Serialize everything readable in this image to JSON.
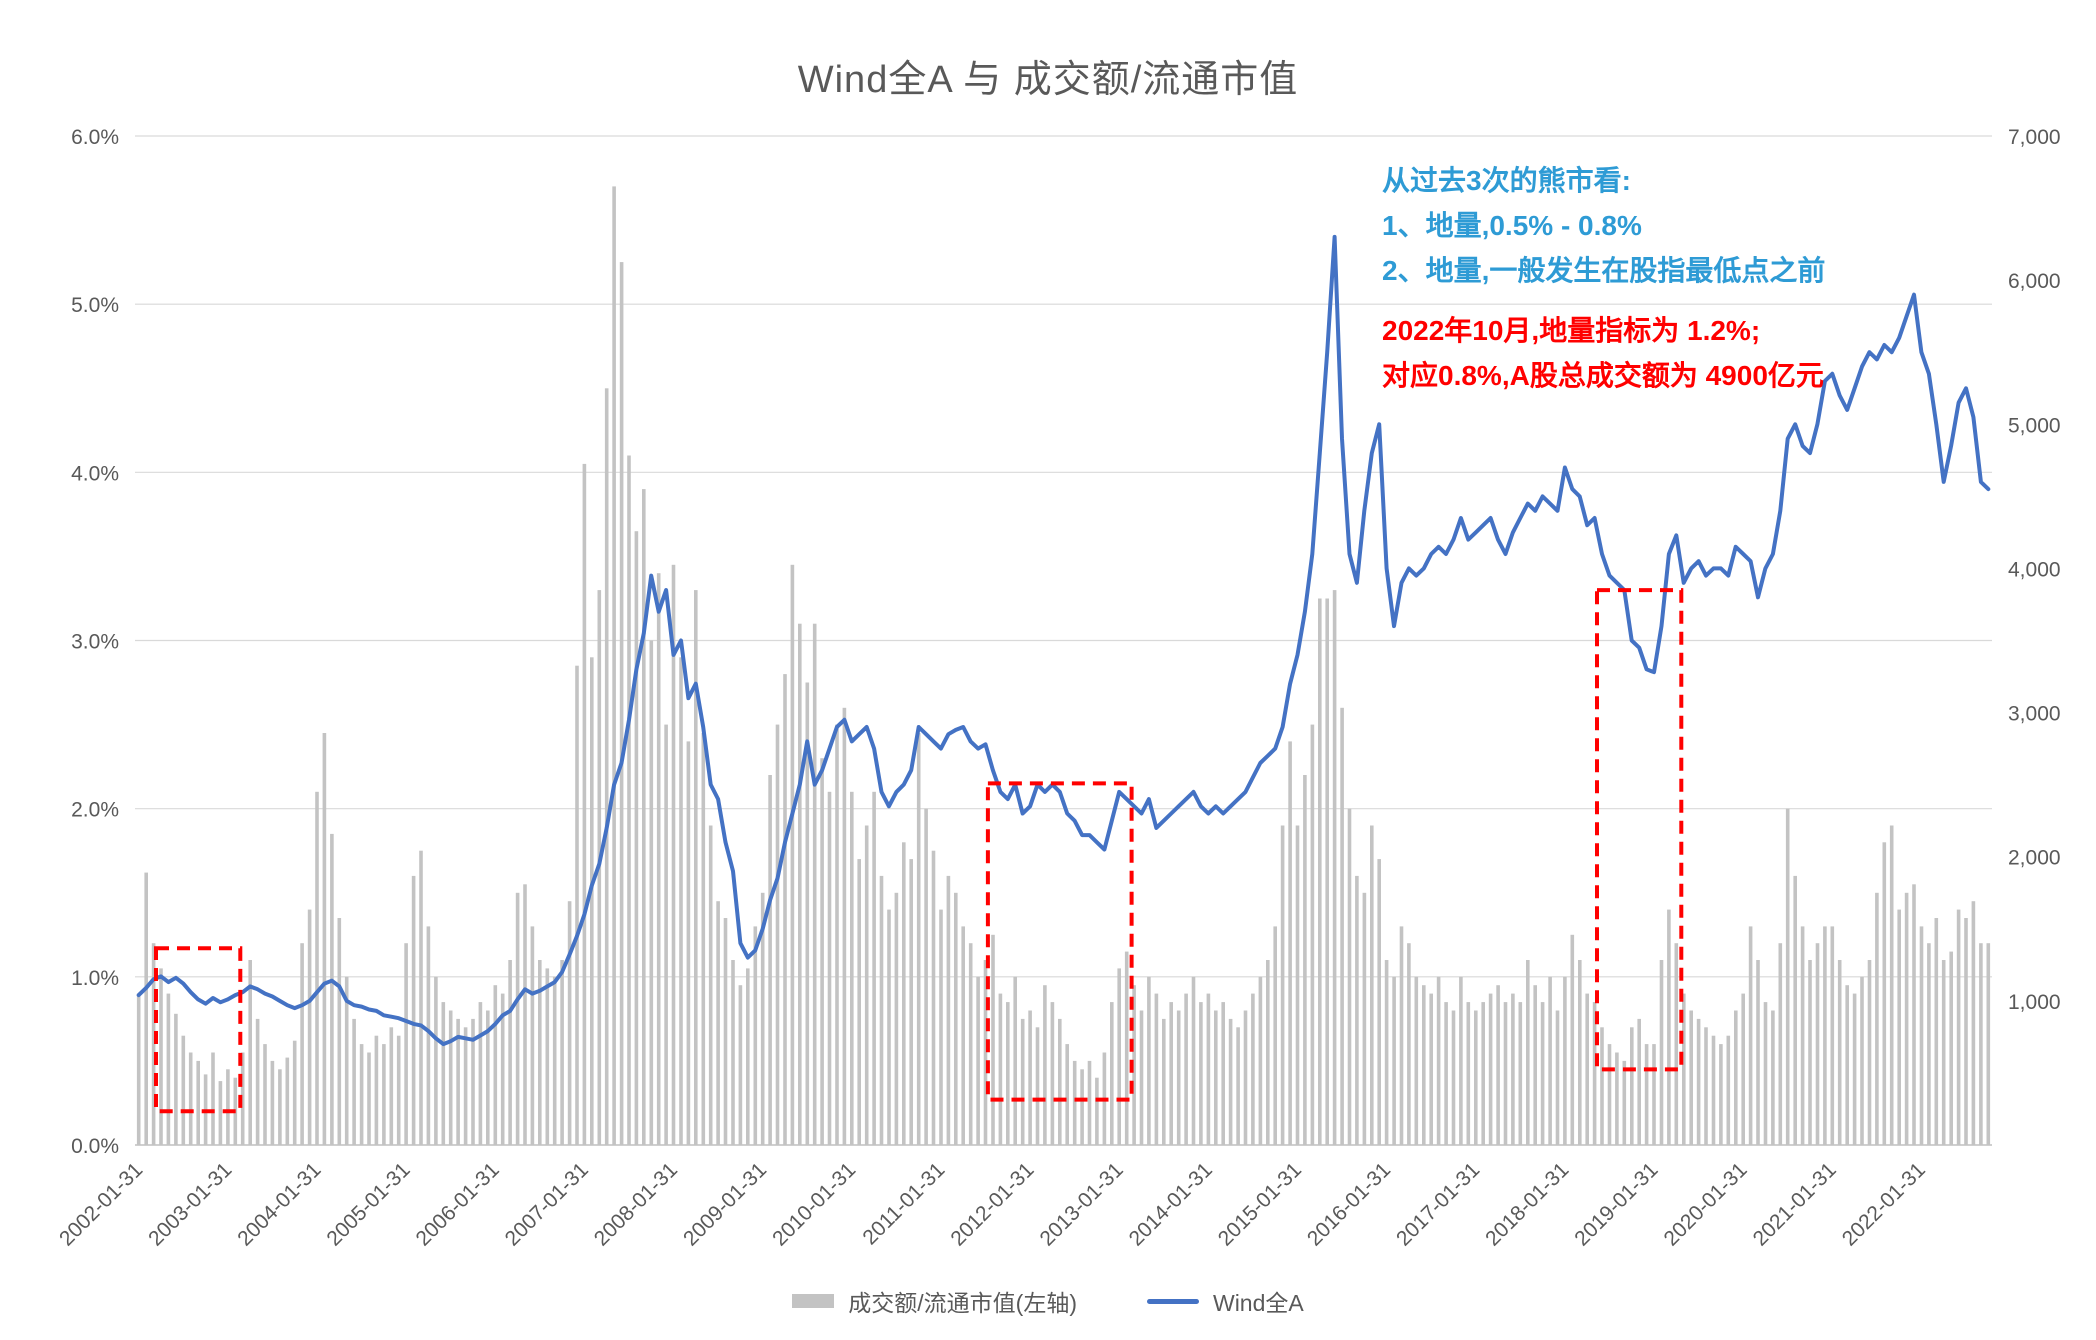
{
  "title": "Wind全A 与 成交额/流通市值",
  "annotations": {
    "blue_color": "#2E9BD5",
    "red_color": "#FF0000",
    "blue_lines": [
      "从过去3次的熊市看:",
      "1、地量,0.5% - 0.8%",
      "2、地量,一般发生在股指最低点之前"
    ],
    "red_lines": [
      "2022年10月,地量指标为 1.2%;",
      "对应0.8%,A股总成交额为 4900亿元"
    ]
  },
  "legend": [
    {
      "label": "成交额/流通市值(左轴)",
      "type": "bar",
      "color": "#C3C3C3"
    },
    {
      "label": "Wind全A",
      "type": "line",
      "color": "#4472C4"
    }
  ],
  "chart_data": {
    "type": "combo bar+line",
    "title": "Wind全A 与 成交额/流通市值",
    "x_frequency": "monthly",
    "x_start_month": "2002-01",
    "x_end_month": "2022-10",
    "x_tick_labels": [
      "2002-01-31",
      "2003-01-31",
      "2004-01-31",
      "2005-01-31",
      "2006-01-31",
      "2007-01-31",
      "2008-01-31",
      "2009-01-31",
      "2010-01-31",
      "2011-01-31",
      "2012-01-31",
      "2013-01-31",
      "2014-01-31",
      "2015-01-31",
      "2016-01-31",
      "2017-01-31",
      "2018-01-31",
      "2019-01-31",
      "2020-01-31",
      "2021-01-31",
      "2022-01-31"
    ],
    "left_axis": {
      "unit": "%",
      "min": 0,
      "max": 6,
      "step": 1,
      "ticks": [
        "0.0%",
        "1.0%",
        "2.0%",
        "3.0%",
        "4.0%",
        "5.0%",
        "6.0%"
      ]
    },
    "right_axis": {
      "min": 0,
      "max": 7000,
      "step": 1000,
      "ticks": [
        "1,000",
        "2,000",
        "3,000",
        "4,000",
        "5,000",
        "6,000",
        "7,000"
      ]
    },
    "grid": "horizontal",
    "legend_position": "bottom",
    "series": [
      {
        "name": "成交额/流通市值(左轴)",
        "type": "bar",
        "axis": "left",
        "unit": "%",
        "color": "#C3C3C3",
        "values": [
          0.9,
          1.62,
          1.2,
          1.05,
          0.9,
          0.78,
          0.65,
          0.55,
          0.5,
          0.42,
          0.55,
          0.38,
          0.45,
          0.4,
          0.55,
          1.1,
          0.75,
          0.6,
          0.5,
          0.45,
          0.52,
          0.62,
          1.2,
          1.4,
          2.1,
          2.45,
          1.85,
          1.35,
          1.0,
          0.75,
          0.6,
          0.55,
          0.65,
          0.6,
          0.7,
          0.65,
          1.2,
          1.6,
          1.75,
          1.3,
          1.0,
          0.85,
          0.8,
          0.75,
          0.7,
          0.75,
          0.85,
          0.8,
          0.95,
          0.9,
          1.1,
          1.5,
          1.55,
          1.3,
          1.1,
          1.05,
          1.0,
          1.1,
          1.45,
          2.85,
          4.05,
          2.9,
          3.3,
          4.5,
          5.7,
          5.25,
          4.1,
          3.65,
          3.9,
          3.0,
          3.4,
          2.5,
          3.45,
          2.9,
          2.4,
          3.3,
          2.45,
          1.9,
          1.45,
          1.35,
          1.1,
          0.95,
          1.05,
          1.3,
          1.5,
          2.2,
          2.5,
          2.8,
          3.45,
          3.1,
          2.75,
          3.1,
          2.3,
          2.1,
          2.5,
          2.6,
          2.1,
          1.7,
          1.9,
          2.1,
          1.6,
          1.4,
          1.5,
          1.8,
          1.7,
          2.45,
          2.0,
          1.75,
          1.4,
          1.6,
          1.5,
          1.3,
          1.2,
          1.0,
          1.1,
          1.25,
          0.9,
          0.85,
          1.0,
          0.75,
          0.8,
          0.7,
          0.95,
          0.85,
          0.75,
          0.6,
          0.5,
          0.45,
          0.5,
          0.4,
          0.55,
          0.85,
          1.05,
          1.15,
          0.95,
          0.8,
          1.0,
          0.9,
          0.75,
          0.85,
          0.8,
          0.9,
          1.0,
          0.85,
          0.9,
          0.8,
          0.85,
          0.75,
          0.7,
          0.8,
          0.9,
          1.0,
          1.1,
          1.3,
          1.9,
          2.4,
          1.9,
          2.2,
          2.5,
          3.25,
          3.25,
          3.3,
          2.6,
          2.0,
          1.6,
          1.5,
          1.9,
          1.7,
          1.1,
          1.0,
          1.3,
          1.2,
          1.0,
          0.95,
          0.9,
          1.0,
          0.85,
          0.8,
          1.0,
          0.85,
          0.8,
          0.85,
          0.9,
          0.95,
          0.85,
          0.9,
          0.85,
          1.1,
          0.95,
          0.85,
          1.0,
          0.8,
          1.0,
          1.25,
          1.1,
          0.9,
          0.85,
          0.7,
          0.6,
          0.55,
          0.5,
          0.7,
          0.75,
          0.6,
          0.6,
          1.1,
          1.4,
          1.2,
          0.9,
          0.8,
          0.75,
          0.7,
          0.65,
          0.6,
          0.65,
          0.8,
          0.9,
          1.3,
          1.1,
          0.85,
          0.8,
          1.2,
          2.0,
          1.6,
          1.3,
          1.1,
          1.2,
          1.3,
          1.3,
          1.1,
          0.95,
          0.9,
          1.0,
          1.1,
          1.5,
          1.8,
          1.9,
          1.4,
          1.5,
          1.55,
          1.3,
          1.2,
          1.35,
          1.1,
          1.15,
          1.4,
          1.35,
          1.45,
          1.2,
          1.2
        ]
      },
      {
        "name": "Wind全A",
        "type": "line",
        "axis": "right",
        "color": "#4472C4",
        "values": [
          1040,
          1090,
          1150,
          1170,
          1130,
          1160,
          1120,
          1060,
          1010,
          980,
          1020,
          990,
          1010,
          1040,
          1060,
          1100,
          1080,
          1050,
          1030,
          1000,
          970,
          950,
          970,
          1000,
          1060,
          1120,
          1140,
          1100,
          1000,
          970,
          960,
          940,
          930,
          900,
          890,
          880,
          860,
          840,
          830,
          790,
          740,
          700,
          720,
          750,
          740,
          730,
          760,
          790,
          840,
          900,
          930,
          1010,
          1080,
          1050,
          1070,
          1100,
          1130,
          1200,
          1320,
          1450,
          1600,
          1800,
          1950,
          2200,
          2500,
          2650,
          2950,
          3300,
          3550,
          3950,
          3700,
          3850,
          3400,
          3500,
          3100,
          3200,
          2900,
          2500,
          2400,
          2100,
          1900,
          1400,
          1300,
          1350,
          1500,
          1700,
          1850,
          2100,
          2300,
          2500,
          2800,
          2500,
          2600,
          2750,
          2900,
          2950,
          2800,
          2850,
          2900,
          2750,
          2450,
          2350,
          2450,
          2500,
          2600,
          2900,
          2850,
          2800,
          2750,
          2850,
          2880,
          2900,
          2800,
          2750,
          2780,
          2600,
          2450,
          2400,
          2500,
          2300,
          2350,
          2500,
          2450,
          2500,
          2450,
          2300,
          2250,
          2150,
          2150,
          2100,
          2050,
          2250,
          2450,
          2400,
          2350,
          2300,
          2400,
          2200,
          2250,
          2300,
          2350,
          2400,
          2450,
          2350,
          2300,
          2350,
          2300,
          2350,
          2400,
          2450,
          2550,
          2650,
          2700,
          2750,
          2900,
          3200,
          3400,
          3700,
          4100,
          4800,
          5500,
          6300,
          4900,
          4100,
          3900,
          4400,
          4800,
          5000,
          4000,
          3600,
          3900,
          4000,
          3950,
          4000,
          4100,
          4150,
          4100,
          4200,
          4350,
          4200,
          4250,
          4300,
          4350,
          4200,
          4100,
          4250,
          4350,
          4450,
          4400,
          4500,
          4450,
          4400,
          4700,
          4550,
          4500,
          4300,
          4350,
          4100,
          3950,
          3900,
          3850,
          3500,
          3450,
          3300,
          3280,
          3600,
          4100,
          4230,
          3900,
          4000,
          4050,
          3950,
          4000,
          4000,
          3950,
          4150,
          4100,
          4050,
          3800,
          4000,
          4100,
          4400,
          4900,
          5000,
          4850,
          4800,
          5000,
          5300,
          5350,
          5200,
          5100,
          5250,
          5400,
          5500,
          5450,
          5550,
          5500,
          5600,
          5750,
          5900,
          5500,
          5350,
          5000,
          4600,
          4850,
          5150,
          5250,
          5050,
          4600,
          4550
        ]
      }
    ],
    "highlight_boxes": [
      {
        "start": "2002-04",
        "end": "2003-02",
        "pct_low": 0.2,
        "pct_high": 1.17,
        "color": "#FF0000"
      },
      {
        "start": "2011-08",
        "end": "2013-02",
        "pct_low": 0.27,
        "pct_high": 2.15,
        "color": "#FF0000"
      },
      {
        "start": "2018-06",
        "end": "2019-04",
        "pct_low": 0.45,
        "pct_high": 3.3,
        "color": "#FF0000"
      }
    ]
  }
}
